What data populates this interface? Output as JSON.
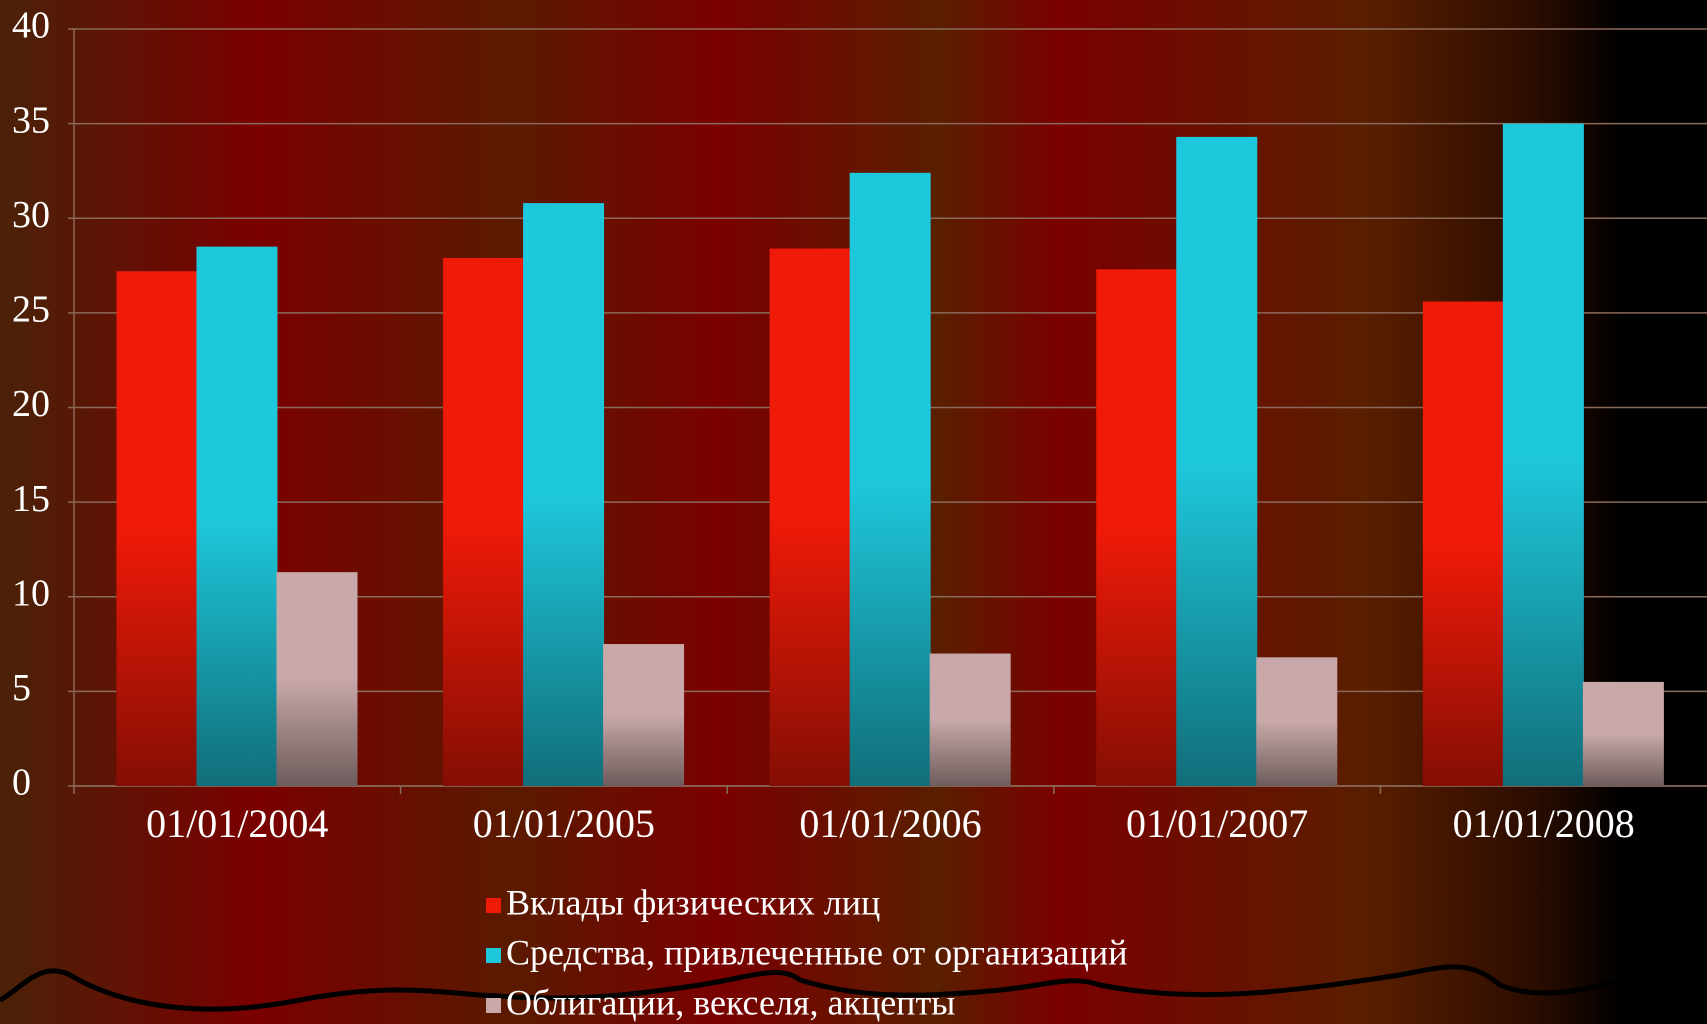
{
  "chart_data": {
    "type": "bar",
    "categories": [
      "01/01/2004",
      "01/01/2005",
      "01/01/2006",
      "01/01/2007",
      "01/01/2008"
    ],
    "series": [
      {
        "name": "Вклады физических лиц",
        "color": "#f01a08",
        "values": [
          27.2,
          27.9,
          28.4,
          27.3,
          25.6
        ]
      },
      {
        "name": "Средства, привлеченные от организаций",
        "color": "#1ec8dc",
        "values": [
          28.5,
          30.8,
          32.4,
          34.3,
          35.0
        ]
      },
      {
        "name": "Облигации, векселя, акцепты",
        "color": "#c8a8a8",
        "values": [
          11.3,
          7.5,
          7.0,
          6.8,
          5.5
        ]
      }
    ],
    "ylim": [
      0,
      40
    ],
    "yticks": [
      0,
      5,
      10,
      15,
      20,
      25,
      30,
      35,
      40
    ],
    "grid": true,
    "legend": "bottom"
  }
}
